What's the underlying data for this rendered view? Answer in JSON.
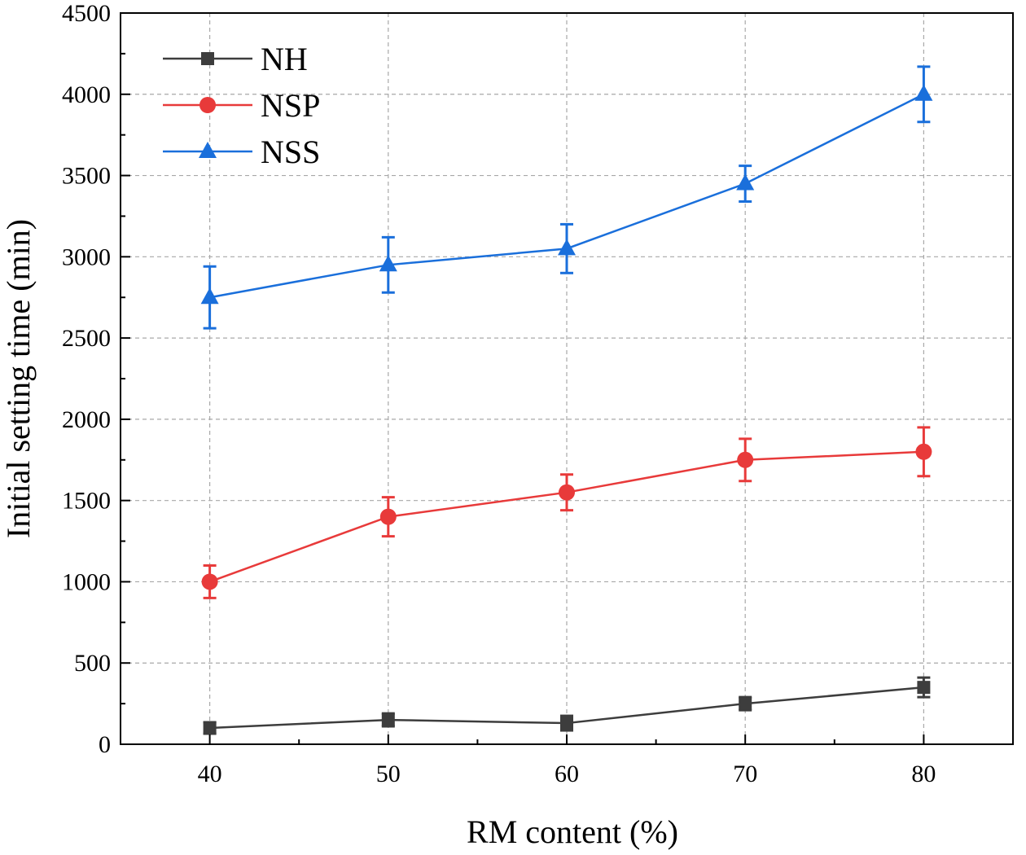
{
  "chart_data": {
    "type": "line",
    "xlabel": "RM content (%)",
    "ylabel": "Initial setting time (min)",
    "xlim": [
      35,
      85
    ],
    "ylim": [
      0,
      4500
    ],
    "x_ticks": [
      40,
      50,
      60,
      70,
      80
    ],
    "x_tick_labels": [
      "40",
      "50",
      "60",
      "70",
      "80"
    ],
    "y_ticks": [
      0,
      500,
      1000,
      1500,
      2000,
      2500,
      3000,
      3500,
      4000,
      4500
    ],
    "y_tick_labels": [
      "0",
      "500",
      "1000",
      "1500",
      "2000",
      "2500",
      "3000",
      "3500",
      "4000",
      "4500"
    ],
    "grid": true,
    "legend_position": "top-left",
    "series": [
      {
        "name": "NH",
        "color": "#3d3d3d",
        "marker": "square",
        "x": [
          40,
          50,
          60,
          70,
          80
        ],
        "values": [
          100,
          150,
          130,
          250,
          350
        ],
        "errors": [
          35,
          40,
          45,
          40,
          60
        ]
      },
      {
        "name": "NSP",
        "color": "#e83a3a",
        "marker": "circle",
        "x": [
          40,
          50,
          60,
          70,
          80
        ],
        "values": [
          1000,
          1400,
          1550,
          1750,
          1800
        ],
        "errors": [
          100,
          120,
          110,
          130,
          150
        ]
      },
      {
        "name": "NSS",
        "color": "#1a6fdb",
        "marker": "triangle",
        "x": [
          40,
          50,
          60,
          70,
          80
        ],
        "values": [
          2750,
          2950,
          3050,
          3450,
          4000
        ],
        "errors": [
          190,
          170,
          150,
          110,
          170
        ]
      }
    ]
  }
}
